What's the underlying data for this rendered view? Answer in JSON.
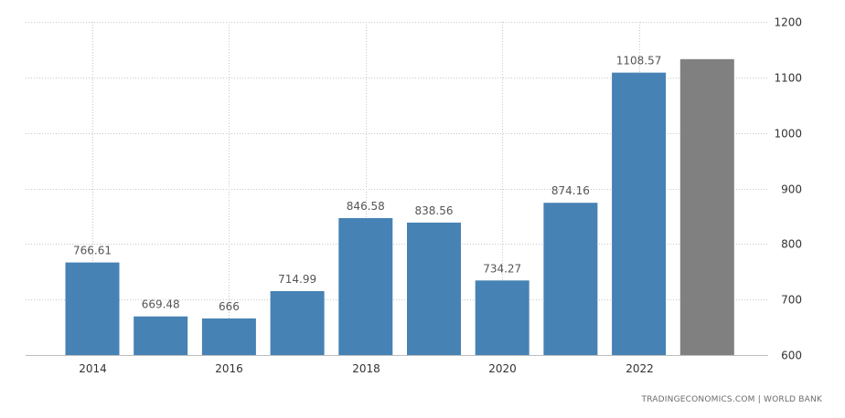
{
  "chart_data": {
    "type": "bar",
    "categories": [
      "2014",
      "2015",
      "2016",
      "2017",
      "2018",
      "2019",
      "2020",
      "2021",
      "2022",
      "2023"
    ],
    "x_tick_labels": [
      "2014",
      "2016",
      "2018",
      "2020",
      "2022"
    ],
    "values": [
      766.61,
      669.48,
      666,
      714.99,
      846.58,
      838.56,
      734.27,
      874.16,
      1108.57,
      1133
    ],
    "value_labels": [
      "766.61",
      "669.48",
      "666",
      "714.99",
      "846.58",
      "838.56",
      "734.27",
      "874.16",
      "1108.57",
      ""
    ],
    "forecast_index": [
      9
    ],
    "ylim": [
      600,
      1200
    ],
    "y_ticks": [
      600,
      700,
      800,
      900,
      1000,
      1100,
      1200
    ],
    "y_axis_side": "right",
    "grid": true,
    "title": "",
    "xlabel": "",
    "ylabel": "",
    "colors": {
      "bar": "#4682b4",
      "forecast": "#808080"
    }
  },
  "source": "TRADINGECONOMICS.COM | WORLD BANK"
}
